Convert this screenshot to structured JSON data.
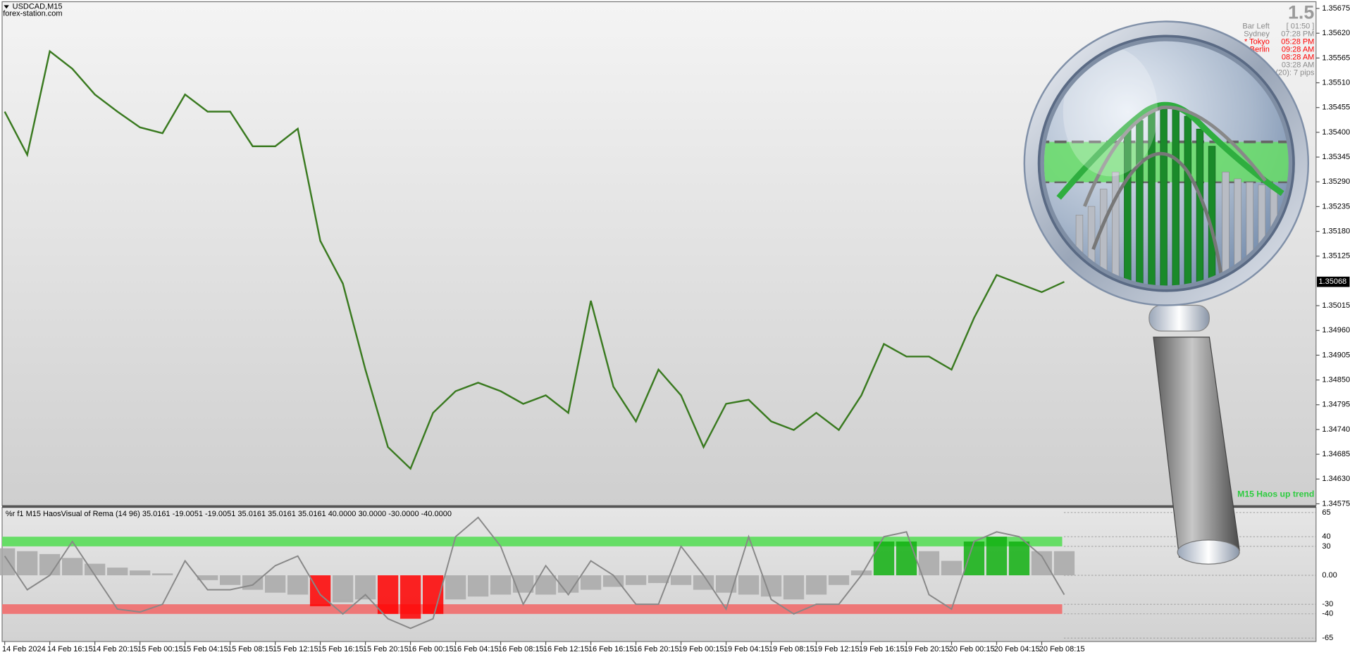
{
  "window": {
    "symbol": "USDCAD,M15",
    "source": "forex-station.com"
  },
  "info": {
    "spread": "1.5",
    "rows": [
      {
        "label": "Bar Left",
        "value": "[ 01:50 ]"
      },
      {
        "label": "Sydney",
        "value": "07:28 PM"
      },
      {
        "label": "* Tokyo",
        "value": "05:28 PM",
        "color": "#ff0000"
      },
      {
        "label": "Berlin",
        "value": "09:28 AM",
        "color": "#ff0000"
      },
      {
        "value": "08:28 AM",
        "color": "#ff0000"
      },
      {
        "value": "03:28 AM"
      },
      {
        "value": "(20): 7 pips"
      }
    ]
  },
  "chart_data": [
    {
      "type": "line",
      "annotation": "M15 Haos up trend",
      "categories": [
        "14 Feb 2024",
        null,
        "14 Feb 16:15",
        null,
        "14 Feb 20:15",
        null,
        "15 Feb 00:15",
        null,
        "15 Feb 04:15",
        null,
        "15 Feb 08:15",
        null,
        "15 Feb 12:15",
        null,
        "15 Feb 16:15",
        null,
        "15 Feb 20:15",
        null,
        "16 Feb 00:15",
        null,
        "16 Feb 04:15",
        null,
        "16 Feb 08:15",
        null,
        "16 Feb 12:15",
        null,
        "16 Feb 16:15",
        null,
        "16 Feb 20:15",
        null,
        "19 Feb 00:15",
        null,
        "19 Feb 04:15",
        null,
        "19 Feb 08:15",
        null,
        "19 Feb 12:15",
        null,
        "19 Feb 16:15",
        null,
        "19 Feb 20:15",
        null,
        "20 Feb 00:15",
        null,
        "20 Feb 04:15",
        null,
        "20 Feb 08:15",
        null
      ],
      "series": [
        {
          "name": "USDCAD,M15",
          "color": "#3a7a20",
          "values": [
            1.35446,
            1.3535,
            1.3558,
            1.35541,
            1.35484,
            1.35446,
            1.35411,
            1.35398,
            1.35484,
            1.35446,
            1.35446,
            1.35369,
            1.35369,
            1.35408,
            1.35159,
            1.35064,
            1.34873,
            1.34701,
            1.34653,
            1.34777,
            1.34825,
            1.34844,
            1.34825,
            1.34797,
            1.34816,
            1.34777,
            1.35026,
            1.34835,
            1.34758,
            1.34873,
            1.34816,
            1.34701,
            1.34797,
            1.34806,
            1.34758,
            1.34739,
            1.34777,
            1.34739,
            1.34816,
            1.3493,
            1.34902,
            1.34902,
            1.34873,
            1.34988,
            1.35083,
            1.35064,
            1.35045,
            1.35068
          ]
        }
      ],
      "last_price": 1.35068,
      "ylim": [
        1.34569,
        1.3569
      ],
      "yticks": [
        1.35675,
        {
          "value": 1.3562,
          "label": "1.35620"
        },
        1.35565,
        {
          "value": 1.3551,
          "label": "1.35510"
        },
        1.35455,
        {
          "value": 1.354,
          "label": "1.35400"
        },
        1.35345,
        {
          "value": 1.3529,
          "label": "1.35290"
        },
        1.35235,
        {
          "value": 1.3518,
          "label": "1.35180"
        },
        1.35125,
        1.35015,
        {
          "value": 1.3496,
          "label": "1.34960"
        },
        1.34905,
        {
          "value": 1.3485,
          "label": "1.34850"
        },
        1.34795,
        {
          "value": 1.3474,
          "label": "1.34740"
        },
        1.34685,
        {
          "value": 1.3463,
          "label": "1.34630"
        },
        1.34575
      ],
      "grid": false
    },
    {
      "type": "oscillator",
      "subtitle": "%r f1 M15 HaosVisual of Rema (14 96) 35.0161 -19.0051 -19.0051 35.0161 35.0161 35.0161 40.0000 30.0000 -30.0000 -40.0000",
      "levels": [
        40,
        30,
        -30,
        -40
      ],
      "band_colors": [
        "#66dd66",
        "#ee7777"
      ],
      "series": [
        {
          "name": "Haos histogram",
          "kind": "bar",
          "color": "#a8a8a8",
          "color_up": "#10b010",
          "color_down": "#ff0000",
          "values": [
            28,
            25,
            22,
            18,
            12,
            8,
            5,
            2,
            0,
            -5,
            -10,
            -15,
            -18,
            -20,
            -32,
            -28,
            -25,
            -40,
            -45,
            -40,
            -25,
            -22,
            -20,
            -18,
            -20,
            -18,
            -15,
            -12,
            -10,
            -8,
            -10,
            -15,
            -18,
            -20,
            -22,
            -25,
            -20,
            -10,
            5,
            35,
            35,
            25,
            15,
            35,
            40,
            35,
            25,
            25
          ]
        },
        {
          "name": "Rema",
          "kind": "line",
          "color": "#888888",
          "values": [
            20,
            -15,
            0,
            35,
            0,
            -35,
            -38,
            -30,
            15,
            -15,
            -15,
            -10,
            10,
            20,
            -20,
            -40,
            -20,
            -45,
            -55,
            -45,
            40,
            60,
            30,
            -30,
            10,
            -20,
            15,
            0,
            -30,
            -30,
            30,
            0,
            -35,
            40,
            -25,
            -40,
            -30,
            -30,
            0,
            40,
            45,
            -20,
            -35,
            35,
            45,
            40,
            20,
            -20
          ]
        }
      ],
      "ylim": [
        -68.6,
        69.5
      ],
      "yticks": [
        65,
        40,
        30,
        {
          "value": 0,
          "label": "0.00"
        },
        -30,
        -40,
        -65
      ],
      "grid": true
    }
  ]
}
